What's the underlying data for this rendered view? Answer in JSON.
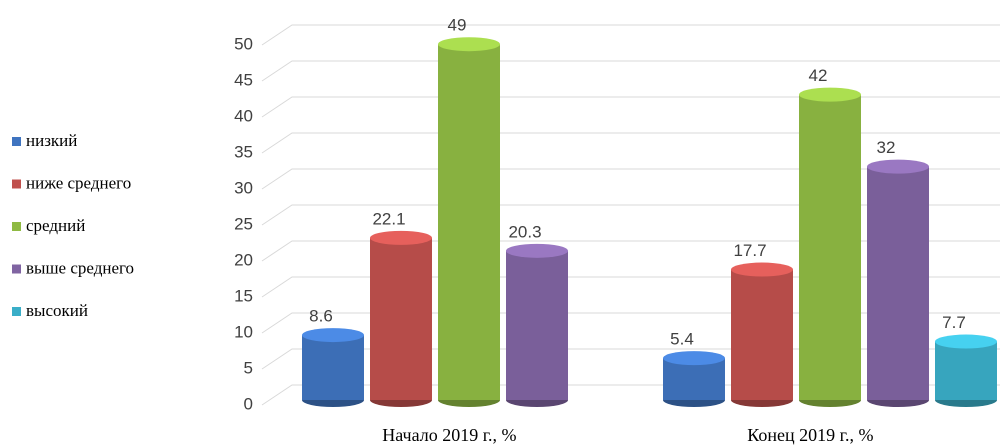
{
  "chart_data": {
    "type": "bar3d",
    "categories": [
      "Начало 2019 г., %",
      "Конец 2019 г., %"
    ],
    "series": [
      {
        "name": "низкий",
        "color": "#3f74c0",
        "values": [
          8.6,
          5.4
        ]
      },
      {
        "name": "ниже среднего",
        "color": "#c0504d",
        "values": [
          22.1,
          17.7
        ]
      },
      {
        "name": "средний",
        "color": "#8fba43",
        "values": [
          49,
          42
        ]
      },
      {
        "name": "выше среднего",
        "color": "#8064a2",
        "values": [
          20.3,
          32
        ]
      },
      {
        "name": "высокий",
        "color": "#3aaec8",
        "values": [
          null,
          7.7
        ]
      }
    ],
    "ylim": [
      0,
      50
    ],
    "yticks": [
      0,
      5,
      10,
      15,
      20,
      25,
      30,
      35,
      40,
      45,
      50
    ],
    "grid": true,
    "legend": "left"
  }
}
